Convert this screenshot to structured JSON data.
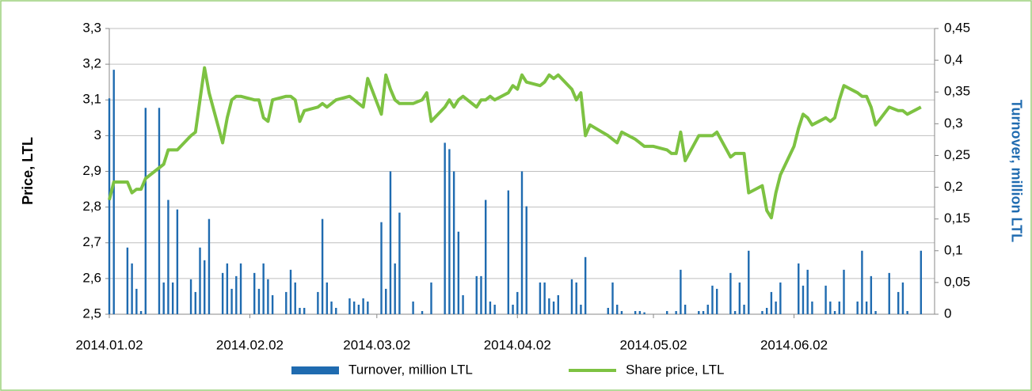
{
  "chart_data": {
    "type": "bar-line",
    "x": [
      "2014.01.02",
      "2014.01.03",
      "2014.01.06",
      "2014.01.07",
      "2014.01.08",
      "2014.01.09",
      "2014.01.10",
      "2014.01.13",
      "2014.01.14",
      "2014.01.15",
      "2014.01.16",
      "2014.01.17",
      "2014.01.20",
      "2014.01.21",
      "2014.01.22",
      "2014.01.23",
      "2014.01.24",
      "2014.01.27",
      "2014.01.28",
      "2014.01.29",
      "2014.01.30",
      "2014.01.31",
      "2014.02.03",
      "2014.02.04",
      "2014.02.05",
      "2014.02.06",
      "2014.02.07",
      "2014.02.10",
      "2014.02.11",
      "2014.02.12",
      "2014.02.13",
      "2014.02.14",
      "2014.02.17",
      "2014.02.18",
      "2014.02.19",
      "2014.02.20",
      "2014.02.21",
      "2014.02.24",
      "2014.02.25",
      "2014.02.26",
      "2014.02.27",
      "2014.02.28",
      "2014.03.03",
      "2014.03.04",
      "2014.03.05",
      "2014.03.06",
      "2014.03.07",
      "2014.03.10",
      "2014.03.12",
      "2014.03.13",
      "2014.03.14",
      "2014.03.17",
      "2014.03.18",
      "2014.03.19",
      "2014.03.20",
      "2014.03.21",
      "2014.03.24",
      "2014.03.25",
      "2014.03.26",
      "2014.03.27",
      "2014.03.28",
      "2014.03.31",
      "2014.04.01",
      "2014.04.02",
      "2014.04.03",
      "2014.04.04",
      "2014.04.07",
      "2014.04.08",
      "2014.04.09",
      "2014.04.10",
      "2014.04.11",
      "2014.04.14",
      "2014.04.15",
      "2014.04.16",
      "2014.04.17",
      "2014.04.18",
      "2014.04.22",
      "2014.04.23",
      "2014.04.24",
      "2014.04.25",
      "2014.04.28",
      "2014.04.29",
      "2014.04.30",
      "2014.05.02",
      "2014.05.05",
      "2014.05.06",
      "2014.05.07",
      "2014.05.08",
      "2014.05.09",
      "2014.05.12",
      "2014.05.13",
      "2014.05.14",
      "2014.05.15",
      "2014.05.16",
      "2014.05.19",
      "2014.05.20",
      "2014.05.21",
      "2014.05.22",
      "2014.05.23",
      "2014.05.26",
      "2014.05.27",
      "2014.05.28",
      "2014.05.29",
      "2014.05.30",
      "2014.06.02",
      "2014.06.03",
      "2014.06.04",
      "2014.06.05",
      "2014.06.06",
      "2014.06.09",
      "2014.06.10",
      "2014.06.11",
      "2014.06.12",
      "2014.06.13",
      "2014.06.16",
      "2014.06.17",
      "2014.06.18",
      "2014.06.19",
      "2014.06.20",
      "2014.06.23",
      "2014.06.25",
      "2014.06.26",
      "2014.06.27",
      "2014.06.30"
    ],
    "series": [
      {
        "name": "Turnover, million LTL",
        "color": "#1f6bb0",
        "axis": "y2",
        "kind": "bar",
        "values": [
          0.34,
          0.385,
          0.105,
          0.08,
          0.04,
          0.005,
          0.325,
          0.325,
          0.05,
          0.18,
          0.05,
          0.165,
          0.055,
          0.035,
          0.105,
          0.085,
          0.15,
          0.065,
          0.08,
          0.04,
          0.06,
          0.08,
          0.065,
          0.04,
          0.08,
          0.055,
          0.03,
          0.035,
          0.07,
          0.05,
          0.01,
          0.01,
          0.035,
          0.15,
          0.05,
          0.02,
          0.01,
          0.025,
          0.02,
          0.015,
          0.025,
          0.02,
          0.145,
          0.04,
          0.225,
          0.08,
          0.16,
          0.02,
          0.005,
          0,
          0.05,
          0.27,
          0.26,
          0.225,
          0.13,
          0.03,
          0.06,
          0.06,
          0.18,
          0.02,
          0.015,
          0.195,
          0.015,
          0.035,
          0.225,
          0.17,
          0.05,
          0.05,
          0.025,
          0.02,
          0.03,
          0.055,
          0.05,
          0.015,
          0.09,
          0,
          0.01,
          0.05,
          0.015,
          0.005,
          0.005,
          0.005,
          0.003,
          0,
          0.005,
          0,
          0.005,
          0.07,
          0.015,
          0.005,
          0.005,
          0.015,
          0.045,
          0.04,
          0.065,
          0.005,
          0.05,
          0.015,
          0.1,
          0.005,
          0.01,
          0.035,
          0.02,
          0.05,
          0,
          0.08,
          0.045,
          0.07,
          0.02,
          0.045,
          0.02,
          0.005,
          0.02,
          0.07,
          0.02,
          0.1,
          0.02,
          0.06,
          0.005,
          0.065,
          0.035,
          0.05,
          0.005,
          0.1
        ]
      },
      {
        "name": "Share price, LTL",
        "color": "#7dc242",
        "kind": "line",
        "values": [
          2.82,
          2.87,
          2.87,
          2.84,
          2.85,
          2.85,
          2.88,
          2.91,
          2.92,
          2.96,
          2.96,
          2.96,
          3.0,
          3.01,
          3.1,
          3.19,
          3.12,
          2.98,
          3.05,
          3.1,
          3.11,
          3.11,
          3.1,
          3.1,
          3.05,
          3.04,
          3.1,
          3.11,
          3.11,
          3.1,
          3.04,
          3.07,
          3.08,
          3.09,
          3.08,
          3.09,
          3.1,
          3.11,
          3.1,
          3.09,
          3.08,
          3.16,
          3.06,
          3.17,
          3.13,
          3.1,
          3.09,
          3.09,
          3.1,
          3.12,
          3.04,
          3.08,
          3.1,
          3.08,
          3.1,
          3.11,
          3.08,
          3.1,
          3.1,
          3.11,
          3.1,
          3.12,
          3.14,
          3.13,
          3.17,
          3.15,
          3.14,
          3.15,
          3.17,
          3.16,
          3.17,
          3.13,
          3.1,
          3.12,
          3.0,
          3.03,
          3.0,
          2.99,
          2.98,
          3.01,
          2.99,
          2.98,
          2.97,
          2.97,
          2.96,
          2.95,
          2.95,
          3.01,
          2.93,
          3.0,
          3.0,
          3.0,
          3.0,
          3.01,
          2.94,
          2.95,
          2.95,
          2.95,
          2.84,
          2.86,
          2.79,
          2.77,
          2.84,
          2.89,
          2.97,
          3.02,
          3.06,
          3.05,
          3.03,
          3.05,
          3.04,
          3.05,
          3.1,
          3.14,
          3.12,
          3.11,
          3.11,
          3.08,
          3.03,
          3.08,
          3.07,
          3.07,
          3.06,
          3.08
        ]
      }
    ],
    "ylabel": "Price, LTL",
    "y2label": "Turnover, million LTL",
    "xlim": [
      "2014.01.02",
      "2014.07.03"
    ],
    "xticks": [
      "2014.01.02",
      "2014.02.02",
      "2014.03.02",
      "2014.04.02",
      "2014.05.02",
      "2014.06.02"
    ],
    "ylim": [
      2.5,
      3.3
    ],
    "yticks": [
      {
        "value": 2.5,
        "label": "2,5"
      },
      {
        "value": 2.6,
        "label": "2,6"
      },
      {
        "value": 2.7,
        "label": "2,7"
      },
      {
        "value": 2.8,
        "label": "2,8"
      },
      {
        "value": 2.9,
        "label": "2,9"
      },
      3,
      {
        "value": 3.1,
        "label": "3,1"
      },
      {
        "value": 3.2,
        "label": "3,2"
      },
      {
        "value": 3.3,
        "label": "3,3"
      }
    ],
    "y2lim": [
      0,
      0.45
    ],
    "y2ticks": [
      0,
      {
        "value": 0.05,
        "label": "0,05"
      },
      {
        "value": 0.1,
        "label": "0,1"
      },
      {
        "value": 0.15,
        "label": "0,15"
      },
      {
        "value": 0.2,
        "label": "0,2"
      },
      {
        "value": 0.25,
        "label": "0,25"
      },
      {
        "value": 0.3,
        "label": "0,3"
      },
      {
        "value": 0.35,
        "label": "0,35"
      },
      {
        "value": 0.4,
        "label": "0,4"
      },
      {
        "value": 0.45,
        "label": "0,45"
      }
    ],
    "grid": true,
    "legend": "bottom"
  }
}
